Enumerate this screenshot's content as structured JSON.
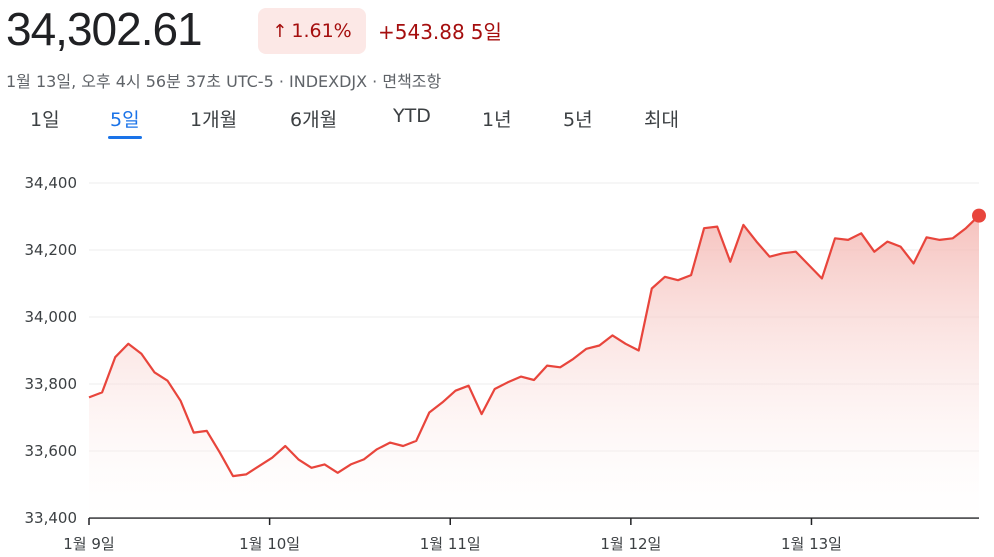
{
  "header": {
    "price": "34,302.61",
    "badge": {
      "arrow_icon": "arrow-up-icon",
      "percent": "1.61%"
    },
    "change": "+543.88",
    "change_period": "5일",
    "meta": "1월 13일, 오후 4시 56분 37초 UTC-5 · INDEXDJX · 면책조항"
  },
  "tabs": [
    {
      "label": "1일",
      "active": false
    },
    {
      "label": "5일",
      "active": true
    },
    {
      "label": "1개월",
      "active": false
    },
    {
      "label": "6개월",
      "active": false
    },
    {
      "label": "YTD",
      "active": false
    },
    {
      "label": "1년",
      "active": false
    },
    {
      "label": "5년",
      "active": false
    },
    {
      "label": "최대",
      "active": false
    }
  ],
  "colors": {
    "line": "#e8453c",
    "fill_top": "#f4b7b2",
    "fill_bottom": "#ffffff",
    "grid": "#ececec",
    "axis": "#202124"
  },
  "chart_data": {
    "type": "area",
    "x_labels": [
      "1월 9일",
      "1월 10일",
      "1월 11일",
      "1월 12일",
      "1월 13일"
    ],
    "y_ticks": [
      "34,400",
      "34,200",
      "34,000",
      "33,800",
      "33,600",
      "33,400"
    ],
    "ylim": [
      33400,
      34400
    ],
    "grid": true,
    "series": [
      {
        "values": [
          33760,
          33775,
          33880,
          33920,
          33890,
          33835,
          33810,
          33750,
          33655,
          33660,
          33595,
          33525,
          33530,
          33555,
          33580,
          33615,
          33575,
          33550,
          33560,
          33535,
          33560,
          33575,
          33605,
          33625,
          33615,
          33630,
          33715,
          33745,
          33780,
          33795,
          33710,
          33785,
          33805,
          33822,
          33812,
          33855,
          33850,
          33875,
          33905,
          33915,
          33945,
          33920,
          33900,
          34085,
          34120,
          34110,
          34125,
          34265,
          34270,
          34165,
          34275,
          34225,
          34180,
          34190,
          34195,
          34155,
          34115,
          34235,
          34230,
          34250,
          34195,
          34225,
          34210,
          34160,
          34238,
          34230,
          34235,
          34265,
          34302.61
        ]
      }
    ],
    "end_marker": true
  }
}
